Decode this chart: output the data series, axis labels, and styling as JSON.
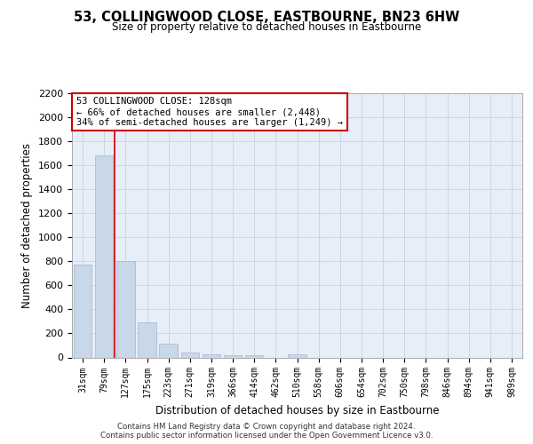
{
  "title": "53, COLLINGWOOD CLOSE, EASTBOURNE, BN23 6HW",
  "subtitle": "Size of property relative to detached houses in Eastbourne",
  "xlabel": "Distribution of detached houses by size in Eastbourne",
  "ylabel": "Number of detached properties",
  "categories": [
    "31sqm",
    "79sqm",
    "127sqm",
    "175sqm",
    "223sqm",
    "271sqm",
    "319sqm",
    "366sqm",
    "414sqm",
    "462sqm",
    "510sqm",
    "558sqm",
    "606sqm",
    "654sqm",
    "702sqm",
    "750sqm",
    "798sqm",
    "846sqm",
    "894sqm",
    "941sqm",
    "989sqm"
  ],
  "values": [
    770,
    1680,
    800,
    295,
    115,
    40,
    25,
    20,
    20,
    0,
    25,
    0,
    0,
    0,
    0,
    0,
    0,
    0,
    0,
    0,
    0
  ],
  "bar_color": "#c8d8e8",
  "bar_edge_color": "#a0b8cc",
  "grid_color": "#c8d8e0",
  "background_color": "#e8eef8",
  "vline_x": 1.5,
  "vline_color": "#cc0000",
  "annotation_line1": "53 COLLINGWOOD CLOSE: 128sqm",
  "annotation_line2": "← 66% of detached houses are smaller (2,448)",
  "annotation_line3": "34% of semi-detached houses are larger (1,249) →",
  "annotation_box_color": "#cc0000",
  "annotation_box_fill": "#ffffff",
  "ylim": [
    0,
    2200
  ],
  "yticks": [
    0,
    200,
    400,
    600,
    800,
    1000,
    1200,
    1400,
    1600,
    1800,
    2000,
    2200
  ],
  "footer_line1": "Contains HM Land Registry data © Crown copyright and database right 2024.",
  "footer_line2": "Contains public sector information licensed under the Open Government Licence v3.0."
}
